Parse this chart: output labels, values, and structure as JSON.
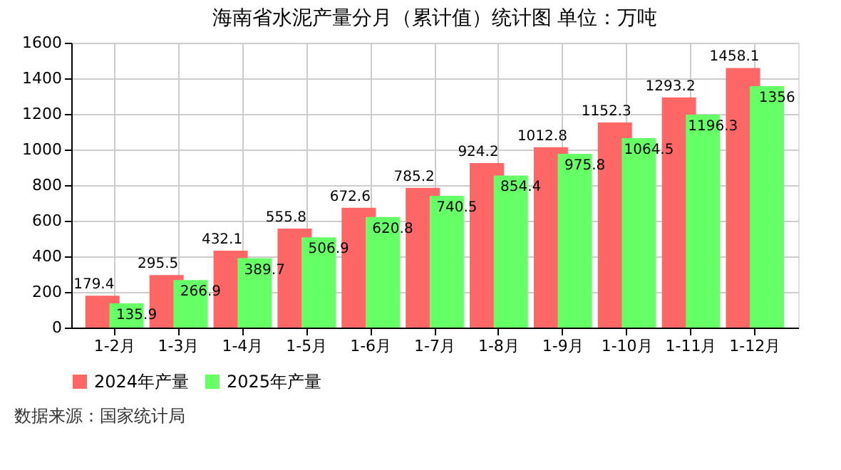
{
  "chart_data": {
    "type": "bar",
    "title": "海南省水泥产量分月（累计值）统计图 单位：万吨",
    "categories": [
      "1-2月",
      "1-3月",
      "1-4月",
      "1-5月",
      "1-6月",
      "1-7月",
      "1-8月",
      "1-9月",
      "1-10月",
      "1-11月",
      "1-12月"
    ],
    "series": [
      {
        "name": "2024年产量",
        "color": "#ff6666",
        "values": [
          179.4,
          295.5,
          432.1,
          555.8,
          672.6,
          785.2,
          924.2,
          1012.8,
          1152.3,
          1293.2,
          1458.1
        ]
      },
      {
        "name": "2025年产量",
        "color": "#66ff66",
        "values": [
          135.9,
          266.9,
          389.7,
          506.9,
          620.8,
          740.5,
          854.4,
          975.8,
          1064.5,
          1196.3,
          1356
        ]
      }
    ],
    "ylim": [
      0,
      1600
    ],
    "yticks": [
      0,
      200,
      400,
      600,
      800,
      1000,
      1200,
      1400,
      1600
    ],
    "grid": true,
    "legend": "bottom",
    "data_labels": true,
    "annotations": [
      "数据来源：国家统计局"
    ]
  }
}
